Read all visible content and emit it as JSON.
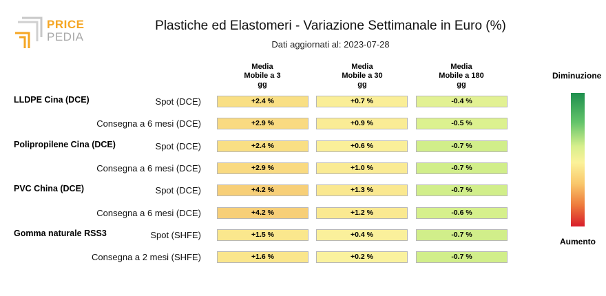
{
  "logo": {
    "word1": "PRICE",
    "word2": "PEDIA"
  },
  "title": "Plastiche ed Elastomeri - Variazione Settimanale in Euro (%)",
  "subtitle": "Dati aggiornati al: 2023-07-28",
  "legend": {
    "top": "Diminuzione",
    "bottom": "Aumento"
  },
  "chart_data": {
    "type": "table",
    "title": "Plastiche ed Elastomeri - Variazione Settimanale in Euro (%)",
    "columns": [
      "Media Mobile a 3 gg",
      "Media Mobile a 30 gg",
      "Media Mobile a 180 gg"
    ],
    "groups": [
      {
        "name": "LLDPE Cina (DCE)",
        "rows": [
          {
            "label": "Spot (DCE)",
            "values": [
              "+2.4 %",
              "+0.7 %",
              "-0.4 %"
            ],
            "numbers": [
              2.4,
              0.7,
              -0.4
            ]
          },
          {
            "label": "Consegna a 6 mesi (DCE)",
            "values": [
              "+2.9 %",
              "+0.9 %",
              "-0.5 %"
            ],
            "numbers": [
              2.9,
              0.9,
              -0.5
            ]
          }
        ]
      },
      {
        "name": "Polipropilene Cina (DCE)",
        "rows": [
          {
            "label": "Spot (DCE)",
            "values": [
              "+2.4 %",
              "+0.6 %",
              "-0.7 %"
            ],
            "numbers": [
              2.4,
              0.6,
              -0.7
            ]
          },
          {
            "label": "Consegna a 6 mesi (DCE)",
            "values": [
              "+2.9 %",
              "+1.0 %",
              "-0.7 %"
            ],
            "numbers": [
              2.9,
              1.0,
              -0.7
            ]
          }
        ]
      },
      {
        "name": "PVC China (DCE)",
        "rows": [
          {
            "label": "Spot (DCE)",
            "values": [
              "+4.2 %",
              "+1.3 %",
              "-0.7 %"
            ],
            "numbers": [
              4.2,
              1.3,
              -0.7
            ]
          },
          {
            "label": "Consegna a 6 mesi (DCE)",
            "values": [
              "+4.2 %",
              "+1.2 %",
              "-0.6 %"
            ],
            "numbers": [
              4.2,
              1.2,
              -0.6
            ]
          }
        ]
      },
      {
        "name": "Gomma naturale RSS3",
        "rows": [
          {
            "label": "Spot (SHFE)",
            "values": [
              "+1.5 %",
              "+0.4 %",
              "-0.7 %"
            ],
            "numbers": [
              1.5,
              0.4,
              -0.7
            ]
          },
          {
            "label": "Consegna a 2 mesi (SHFE)",
            "values": [
              "+1.6 %",
              "+0.2 %",
              "-0.7 %"
            ],
            "numbers": [
              1.6,
              0.2,
              -0.7
            ]
          }
        ]
      }
    ]
  }
}
